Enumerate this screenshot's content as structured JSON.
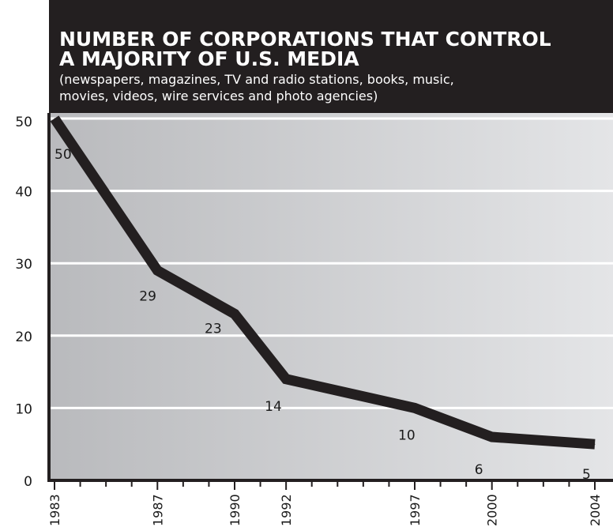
{
  "colors": {
    "header_bg": "#231f20",
    "line": "#231f20",
    "plot_bg_left": "#b9babd",
    "plot_bg_right": "#e4e5e7",
    "gridline": "#ffffff",
    "text": "#1a1a1a"
  },
  "chart_data": {
    "type": "line",
    "title_lines": [
      "NUMBER OF CORPORATIONS THAT CONTROL",
      "A MAJORITY OF U.S. MEDIA"
    ],
    "subtitle_lines": [
      "(newspapers, magazines, TV and radio stations, books, music,",
      "movies, videos, wire services and photo agencies)"
    ],
    "xlabel": "",
    "ylabel": "",
    "x_ticks": [
      "1983",
      "1987",
      "1990",
      "1992",
      "1997",
      "2000",
      "2004"
    ],
    "y_ticks": [
      "0",
      "10",
      "20",
      "30",
      "40",
      "50"
    ],
    "ylim": [
      0,
      50
    ],
    "xlim": [
      1983,
      2004
    ],
    "grid": true,
    "legend": "none",
    "series": [
      {
        "points": [
          {
            "x": 1983,
            "y": 50,
            "label": "50"
          },
          {
            "x": 1987,
            "y": 29,
            "label": "29"
          },
          {
            "x": 1990,
            "y": 23,
            "label": "23"
          },
          {
            "x": 1992,
            "y": 14,
            "label": "14"
          },
          {
            "x": 1997,
            "y": 10,
            "label": "10"
          },
          {
            "x": 2000,
            "y": 6,
            "label": "6"
          },
          {
            "x": 2004,
            "y": 5,
            "label": "5"
          }
        ]
      }
    ]
  }
}
